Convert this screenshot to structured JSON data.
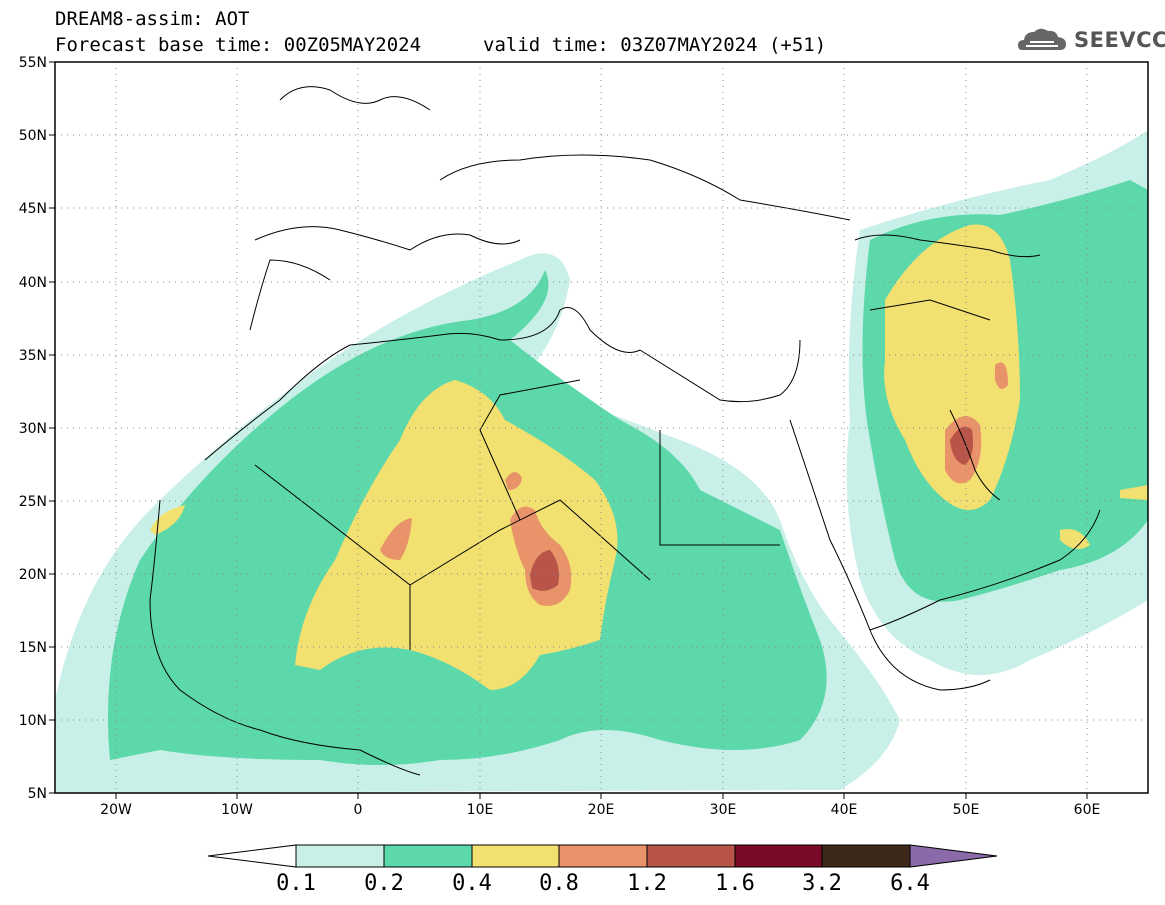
{
  "title": {
    "line1": "DREAM8-assim: AOT",
    "base": "Forecast base time: 00Z05MAY2024",
    "valid": "valid time: 03Z07MAY2024 (+51)"
  },
  "logo": {
    "icon": "cloud-icon",
    "text": "SEEVCCC"
  },
  "axes": {
    "lat_ticks": [
      "55N",
      "50N",
      "45N",
      "40N",
      "35N",
      "30N",
      "25N",
      "20N",
      "15N",
      "10N",
      "5N"
    ],
    "lon_ticks": [
      "20W",
      "10W",
      "0",
      "10E",
      "20E",
      "30E",
      "40E",
      "50E",
      "60E"
    ]
  },
  "colorbar": {
    "levels": [
      "0.1",
      "0.2",
      "0.4",
      "0.8",
      "1.2",
      "1.6",
      "3.2",
      "6.4"
    ],
    "colors": [
      "#ffffff",
      "#c8f0e8",
      "#5cd8aa",
      "#f2e070",
      "#e8936a",
      "#b85548",
      "#7a0a28",
      "#3c2818",
      "#8a6aa8"
    ]
  }
}
